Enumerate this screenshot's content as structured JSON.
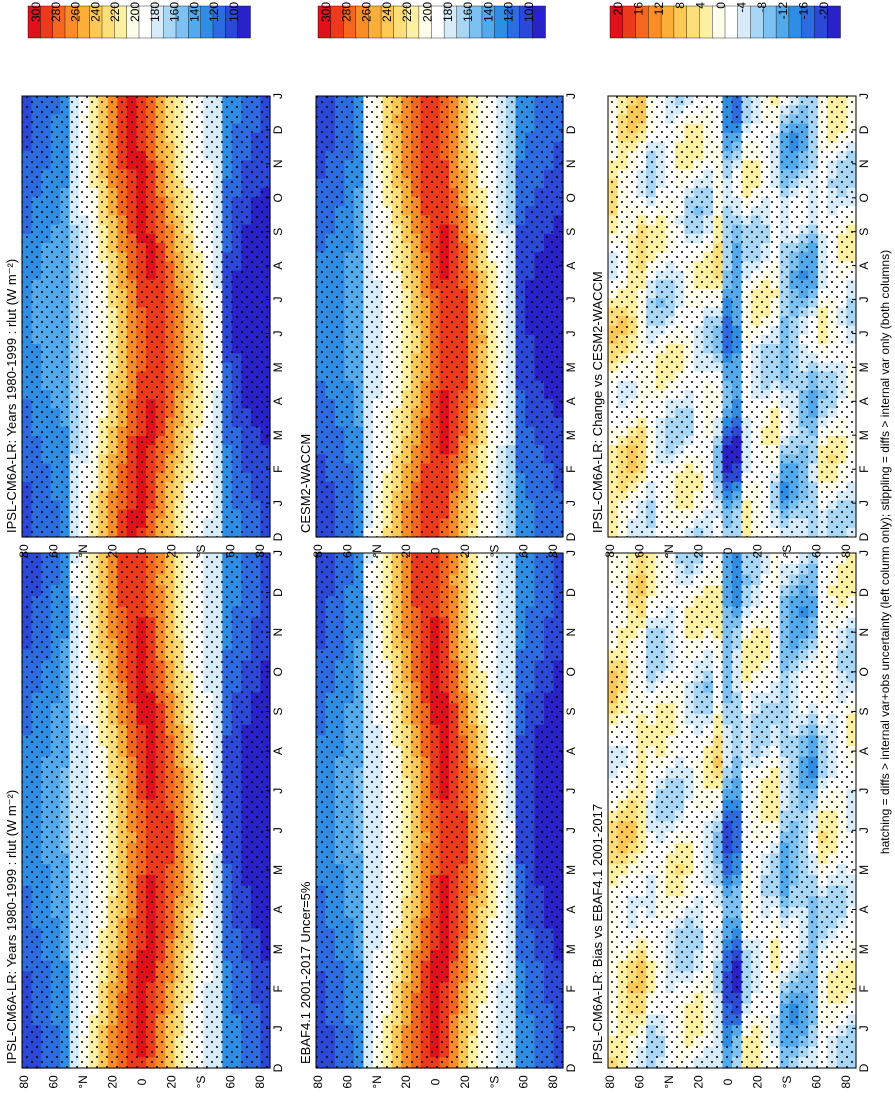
{
  "figure": {
    "footnote": "hatching = diffs > internal var+obs uncertainty (left column only); stippling = diffs > internal var only (both columns)"
  },
  "chart_data": [
    {
      "type": "heatmap",
      "id": "top-left",
      "title": "IPSL-CM6A-LR: Years 1980-1999 : rlut (W m⁻²)",
      "x_ticks": [
        "D",
        "J",
        "F",
        "M",
        "A",
        "M",
        "J",
        "J",
        "A",
        "S",
        "O",
        "N",
        "D",
        "J"
      ],
      "y_ticks": [
        "80",
        "60",
        "°N",
        "20",
        "0",
        "20",
        "°S",
        "60",
        "80"
      ],
      "colorbar_labels": [
        "300",
        "280",
        "260",
        "240",
        "220",
        "200",
        "180",
        "160",
        "140",
        "120",
        "100"
      ],
      "kind": "absolute",
      "hatching": true
    },
    {
      "type": "heatmap",
      "id": "top-right",
      "title": "IPSL-CM6A-LR: Years 1980-1999 : rlut (W m⁻²)",
      "x_ticks": [
        "D",
        "J",
        "F",
        "M",
        "A",
        "M",
        "J",
        "J",
        "A",
        "S",
        "O",
        "N",
        "D",
        "J"
      ],
      "y_ticks": [
        "80",
        "60",
        "°N",
        "20",
        "0",
        "20",
        "°S",
        "60",
        "80"
      ],
      "colorbar_labels": [
        "300",
        "280",
        "260",
        "240",
        "220",
        "200",
        "180",
        "160",
        "140",
        "120",
        "100"
      ],
      "kind": "absolute",
      "hatching": false
    },
    {
      "type": "heatmap",
      "id": "mid-left",
      "title": "EBAF4.1 2001-2017 Uncer=5%",
      "x_ticks": [
        "D",
        "J",
        "F",
        "M",
        "A",
        "M",
        "J",
        "J",
        "A",
        "S",
        "O",
        "N",
        "D",
        "J"
      ],
      "y_ticks": [
        "80",
        "60",
        "°N",
        "20",
        "0",
        "20",
        "°S",
        "60",
        "80"
      ],
      "colorbar_labels": [
        "300",
        "280",
        "260",
        "240",
        "220",
        "200",
        "180",
        "160",
        "140",
        "120",
        "100"
      ],
      "kind": "absolute",
      "hatching": true
    },
    {
      "type": "heatmap",
      "id": "mid-right",
      "title": "CESM2-WACCM",
      "x_ticks": [
        "D",
        "J",
        "F",
        "M",
        "A",
        "M",
        "J",
        "J",
        "A",
        "S",
        "O",
        "N",
        "D",
        "J"
      ],
      "y_ticks": [
        "80",
        "60",
        "°N",
        "20",
        "0",
        "20",
        "°S",
        "60",
        "80"
      ],
      "colorbar_labels": [
        "300",
        "280",
        "260",
        "240",
        "220",
        "200",
        "180",
        "160",
        "140",
        "120",
        "100"
      ],
      "kind": "absolute",
      "hatching": false
    },
    {
      "type": "heatmap",
      "id": "bottom-left",
      "title": "IPSL-CM6A-LR: Bias vs EBAF4.1 2001-2017",
      "x_ticks": [
        "D",
        "J",
        "F",
        "M",
        "A",
        "M",
        "J",
        "J",
        "A",
        "S",
        "O",
        "N",
        "D",
        "J"
      ],
      "y_ticks": [
        "80",
        "60",
        "°N",
        "20",
        "0",
        "20",
        "°S",
        "60",
        "80"
      ],
      "colorbar_labels": [
        "20",
        "16",
        "12",
        "8",
        "4",
        "0",
        "-4",
        "-8",
        "-12",
        "-16",
        "-20"
      ],
      "kind": "diff",
      "hatching": true
    },
    {
      "type": "heatmap",
      "id": "bottom-right",
      "title": "IPSL-CM6A-LR: Change vs CESM2-WACCM",
      "x_ticks": [
        "D",
        "J",
        "F",
        "M",
        "A",
        "M",
        "J",
        "J",
        "A",
        "S",
        "O",
        "N",
        "D",
        "J"
      ],
      "y_ticks": [
        "80",
        "60",
        "°N",
        "20",
        "0",
        "20",
        "°S",
        "60",
        "80"
      ],
      "colorbar_labels": [
        "20",
        "16",
        "12",
        "8",
        "4",
        "0",
        "-4",
        "-8",
        "-12",
        "-16",
        "-20"
      ],
      "kind": "diff",
      "hatching": false
    }
  ],
  "colors": {
    "scale": [
      "#e0111a",
      "#ee3a1c",
      "#f5661f",
      "#fa8d28",
      "#fcae3a",
      "#fdc855",
      "#fede78",
      "#fef0a3",
      "#fefdea",
      "#ffffff",
      "#d7ecf8",
      "#a9d6f5",
      "#7cc1f1",
      "#52a9ec",
      "#2f8de4",
      "#2c6be0",
      "#2b48d6",
      "#2a22c9"
    ]
  }
}
